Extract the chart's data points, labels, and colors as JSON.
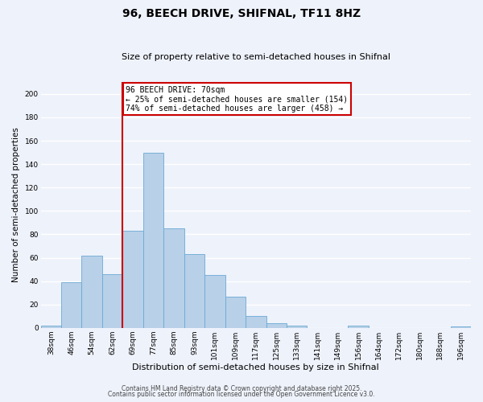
{
  "title": "96, BEECH DRIVE, SHIFNAL, TF11 8HZ",
  "subtitle": "Size of property relative to semi-detached houses in Shifnal",
  "xlabel": "Distribution of semi-detached houses by size in Shifnal",
  "ylabel": "Number of semi-detached properties",
  "categories": [
    "38sqm",
    "46sqm",
    "54sqm",
    "62sqm",
    "69sqm",
    "77sqm",
    "85sqm",
    "93sqm",
    "101sqm",
    "109sqm",
    "117sqm",
    "125sqm",
    "133sqm",
    "141sqm",
    "149sqm",
    "156sqm",
    "164sqm",
    "172sqm",
    "180sqm",
    "188sqm",
    "196sqm"
  ],
  "values": [
    2,
    39,
    62,
    46,
    83,
    150,
    85,
    63,
    45,
    27,
    10,
    4,
    2,
    0,
    0,
    2,
    0,
    0,
    0,
    0,
    1
  ],
  "bar_color": "#b8d0e8",
  "bar_edge_color": "#6aaad4",
  "bg_color": "#eef2fb",
  "grid_color": "#ffffff",
  "red_line_index": 4,
  "red_line_color": "#cc0000",
  "annotation_title": "96 BEECH DRIVE: 70sqm",
  "annotation_line1": "← 25% of semi-detached houses are smaller (154)",
  "annotation_line2": "74% of semi-detached houses are larger (458) →",
  "annotation_box_color": "#ffffff",
  "annotation_box_edge": "#cc0000",
  "ylim": [
    0,
    210
  ],
  "yticks": [
    0,
    20,
    40,
    60,
    80,
    100,
    120,
    140,
    160,
    180,
    200
  ],
  "footer1": "Contains HM Land Registry data © Crown copyright and database right 2025.",
  "footer2": "Contains public sector information licensed under the Open Government Licence v3.0.",
  "title_fontsize": 10,
  "subtitle_fontsize": 8,
  "xlabel_fontsize": 8,
  "ylabel_fontsize": 7.5,
  "tick_fontsize": 6.5,
  "annotation_fontsize": 7,
  "footer_fontsize": 5.5
}
